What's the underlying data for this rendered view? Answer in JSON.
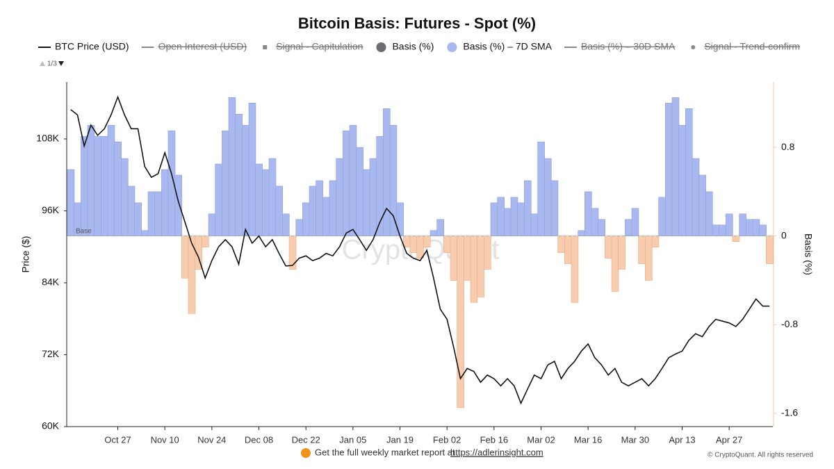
{
  "chart_data": {
    "type": "combo",
    "title": "Bitcoin Basis: Futures - Spot (%)",
    "pager": "1/3",
    "watermark": "CryptoQuant",
    "base_label": "Base",
    "ylabel": "Price ($)",
    "y2label": "Basis (%)",
    "footer_text": "Get the full weekly market report at",
    "footer_link": "https://adlerinsight.com",
    "copyright": "© CryptoQuant. All rights reserved",
    "x": [
      "Oct 13",
      "Oct 15",
      "Oct 17",
      "Oct 19",
      "Oct 21",
      "Oct 23",
      "Oct 25",
      "Oct 27",
      "Oct 29",
      "Oct 31",
      "Nov 02",
      "Nov 04",
      "Nov 06",
      "Nov 08",
      "Nov 10",
      "Nov 12",
      "Nov 14",
      "Nov 16",
      "Nov 18",
      "Nov 20",
      "Nov 22",
      "Nov 24",
      "Nov 26",
      "Nov 28",
      "Nov 30",
      "Dec 02",
      "Dec 04",
      "Dec 06",
      "Dec 08",
      "Dec 10",
      "Dec 12",
      "Dec 14",
      "Dec 16",
      "Dec 18",
      "Dec 20",
      "Dec 22",
      "Dec 24",
      "Dec 26",
      "Dec 28",
      "Dec 30",
      "Jan 01",
      "Jan 03",
      "Jan 05",
      "Jan 07",
      "Jan 09",
      "Jan 11",
      "Jan 13",
      "Jan 15",
      "Jan 17",
      "Jan 19",
      "Jan 21",
      "Jan 23",
      "Jan 25",
      "Jan 27",
      "Jan 29",
      "Jan 31",
      "Feb 02",
      "Feb 04",
      "Feb 06",
      "Feb 08",
      "Feb 10",
      "Feb 12",
      "Feb 14",
      "Feb 16",
      "Feb 18",
      "Feb 20",
      "Feb 22",
      "Feb 24",
      "Feb 26",
      "Feb 28",
      "Mar 02",
      "Mar 04",
      "Mar 06",
      "Mar 08",
      "Mar 10",
      "Mar 12",
      "Mar 14",
      "Mar 16",
      "Mar 18",
      "Mar 20",
      "Mar 22",
      "Mar 24",
      "Mar 26",
      "Mar 28",
      "Mar 30",
      "Apr 01",
      "Apr 03",
      "Apr 05",
      "Apr 07",
      "Apr 09",
      "Apr 11",
      "Apr 13",
      "Apr 15",
      "Apr 17",
      "Apr 19",
      "Apr 21",
      "Apr 23",
      "Apr 25",
      "Apr 27",
      "Apr 29",
      "May 01",
      "May 03",
      "May 05",
      "May 07",
      "May 09"
    ],
    "xticks": [
      "Oct 27",
      "Nov 10",
      "Nov 24",
      "Dec 08",
      "Dec 22",
      "Jan 05",
      "Jan 19",
      "Feb 02",
      "Feb 16",
      "Mar 02",
      "Mar 16",
      "Mar 30",
      "Apr 13",
      "Apr 27"
    ],
    "ylim": [
      60000,
      117500
    ],
    "yticks": [
      {
        "value": 60000,
        "label": "60K"
      },
      {
        "value": 72000,
        "label": "72K"
      },
      {
        "value": 84000,
        "label": "84K"
      },
      {
        "value": 96000,
        "label": "96K"
      },
      {
        "value": 108000,
        "label": "108K"
      }
    ],
    "y2lim": [
      -1.72,
      1.39
    ],
    "y2ticks": [
      -1.6,
      -0.8,
      0,
      0.8
    ],
    "series": [
      {
        "name": "BTC Price (USD)",
        "kind": "line",
        "marker": "line",
        "color": "#111111",
        "values": [
          112900,
          112000,
          106800,
          110300,
          108600,
          109700,
          112000,
          115000,
          112000,
          109700,
          109700,
          103400,
          101600,
          102200,
          105700,
          102200,
          97600,
          94100,
          90600,
          88300,
          84800,
          87700,
          90000,
          91200,
          90000,
          87100,
          92900,
          90600,
          91800,
          90000,
          91200,
          88900,
          86800,
          86900,
          88100,
          88500,
          87700,
          88100,
          88900,
          88500,
          90000,
          92300,
          92900,
          91200,
          89400,
          91200,
          94100,
          96400,
          95200,
          91800,
          88900,
          88100,
          87700,
          89400,
          84800,
          79600,
          77900,
          73200,
          68000,
          69700,
          69200,
          67400,
          68600,
          68000,
          66800,
          68000,
          66800,
          63900,
          66300,
          68600,
          68000,
          70300,
          70900,
          68000,
          69700,
          70900,
          72600,
          73800,
          71500,
          70300,
          68600,
          69700,
          67400,
          66800,
          67400,
          68000,
          66800,
          68000,
          69700,
          71500,
          72100,
          72600,
          74400,
          75500,
          75000,
          76700,
          77900,
          77600,
          77300,
          76700,
          77900,
          79600,
          81300,
          80100,
          80100
        ]
      },
      {
        "name": "Open Interest (USD)",
        "marker": "line",
        "color": "#888888",
        "hidden": true
      },
      {
        "name": "Signal - Capitulation",
        "marker": "square",
        "color": "#666666",
        "hidden": true
      },
      {
        "name": "Basis (%)",
        "marker": "circle",
        "color": "#6b6b70"
      },
      {
        "name": "Basis (%) – 7D SMA",
        "kind": "bar",
        "axis": "y2",
        "marker": "circle",
        "color": "#a9b8ee",
        "negative_color": "#f8cdaf",
        "values": [
          0.6,
          0.3,
          0.9,
          1.0,
          0.9,
          0.9,
          1.0,
          0.85,
          0.7,
          0.45,
          0.3,
          0.05,
          0.4,
          0.4,
          0.6,
          0.95,
          0.55,
          -0.38,
          -0.7,
          -0.3,
          -0.1,
          0.2,
          0.65,
          0.95,
          1.25,
          1.1,
          1.0,
          1.2,
          0.65,
          0.6,
          0.7,
          0.45,
          0.2,
          -0.3,
          0.15,
          0.3,
          0.45,
          0.5,
          0.35,
          0.5,
          0.7,
          0.95,
          1.0,
          0.8,
          0.6,
          0.7,
          0.9,
          1.15,
          1.0,
          0.3,
          -0.1,
          -0.15,
          -0.2,
          -0.1,
          0.05,
          0.15,
          -0.15,
          -0.4,
          -1.55,
          -0.4,
          -0.6,
          -0.55,
          -0.3,
          0.3,
          0.35,
          0.25,
          0.35,
          0.3,
          0.5,
          0.2,
          0.85,
          0.7,
          0.5,
          -0.15,
          -0.25,
          -0.6,
          0.05,
          0.4,
          0.25,
          0.15,
          -0.2,
          -0.5,
          -0.3,
          0.15,
          0.25,
          -0.25,
          -0.4,
          -0.1,
          0.35,
          1.2,
          1.25,
          1.0,
          1.15,
          0.7,
          0.55,
          0.4,
          0.1,
          0.1,
          0.2,
          -0.05,
          0.2,
          0.15,
          0.15,
          0.1,
          -0.25
        ]
      },
      {
        "name": "Basis (%) – 30D SMA",
        "marker": "line",
        "color": "#888888",
        "hidden": true
      },
      {
        "name": "Signal - Trend-confirm",
        "marker": "dot",
        "color": "#666666",
        "hidden": true
      }
    ]
  }
}
